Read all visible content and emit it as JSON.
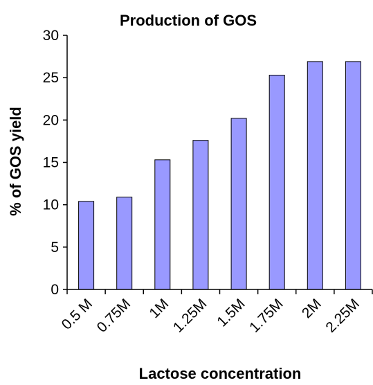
{
  "chart_data": {
    "type": "bar",
    "title": "Production of GOS",
    "xlabel": "Lactose concentration",
    "ylabel": "% of GOS yield",
    "categories": [
      "0.5 M",
      "0.75M",
      "1M",
      "1.25M",
      "1.5M",
      "1.75M",
      "2M",
      "2.25M"
    ],
    "values": [
      10.4,
      10.9,
      15.3,
      17.6,
      20.2,
      25.3,
      26.9,
      26.9
    ],
    "ylim": [
      0,
      30
    ],
    "yticks": [
      "0",
      "5",
      "10",
      "15",
      "20",
      "25",
      "30"
    ],
    "grid": false,
    "legend": "none",
    "bar_color": "#9999ff",
    "bar_edge_color": "#000000"
  }
}
